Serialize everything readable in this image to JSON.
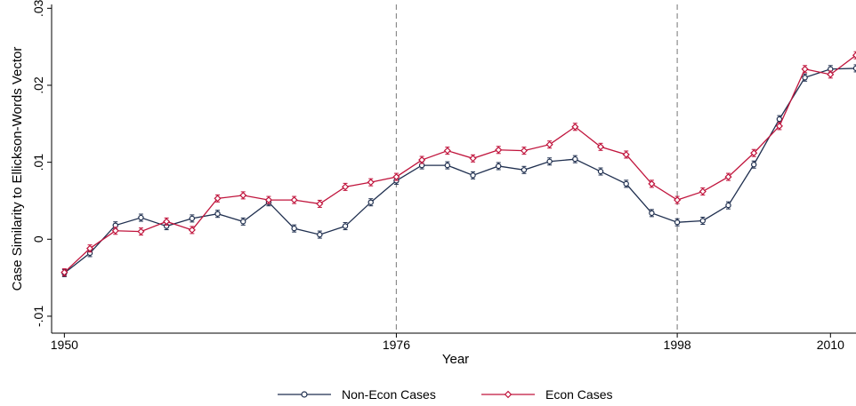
{
  "chart_data": {
    "type": "line",
    "title": "",
    "xlabel": "Year",
    "ylabel": "Case Similarity to Ellickson-Words Vector",
    "xlim": [
      1949,
      2012
    ],
    "ylim": [
      -0.0122,
      0.0305
    ],
    "xticks": [
      {
        "value": 1950,
        "label": "1950"
      },
      {
        "value": 1976,
        "label": "1976"
      },
      {
        "value": 1998,
        "label": "1998"
      },
      {
        "value": 2010,
        "label": "2010"
      }
    ],
    "yticks": [
      {
        "value": -0.01,
        "label": "-.01"
      },
      {
        "value": 0,
        "label": "0"
      },
      {
        "value": 0.01,
        "label": ".01"
      },
      {
        "value": 0.02,
        "label": ".02"
      },
      {
        "value": 0.03,
        "label": ".03"
      }
    ],
    "reference_lines_x": [
      1976,
      1998
    ],
    "grid": false,
    "legend_position": "bottom",
    "x": [
      1950,
      1952,
      1954,
      1956,
      1958,
      1960,
      1962,
      1964,
      1966,
      1968,
      1970,
      1972,
      1974,
      1976,
      1978,
      1980,
      1982,
      1984,
      1986,
      1988,
      1990,
      1992,
      1994,
      1996,
      1998,
      2000,
      2002,
      2004,
      2006,
      2008,
      2010,
      2012
    ],
    "series": [
      {
        "name": "Non-Econ Cases",
        "color": "#1f2f4f",
        "marker": "circle",
        "values": [
          -0.0044,
          -0.0018,
          0.0018,
          0.0028,
          0.0017,
          0.0027,
          0.0033,
          0.0023,
          0.0048,
          0.0014,
          0.0006,
          0.0017,
          0.0048,
          0.0076,
          0.0096,
          0.0096,
          0.0083,
          0.0095,
          0.009,
          0.0101,
          0.0104,
          0.0088,
          0.0072,
          0.0034,
          0.0022,
          0.0024,
          0.0044,
          0.0097,
          0.0156,
          0.021,
          0.0221,
          0.0222
        ]
      },
      {
        "name": "Econ Cases",
        "color": "#c0143c",
        "marker": "diamond",
        "values": [
          -0.0043,
          -0.0012,
          0.0011,
          0.001,
          0.0023,
          0.0012,
          0.0053,
          0.0057,
          0.0051,
          0.0051,
          0.0046,
          0.0068,
          0.0074,
          0.0081,
          0.0103,
          0.0115,
          0.0105,
          0.0116,
          0.0115,
          0.0123,
          0.0146,
          0.012,
          0.011,
          0.0072,
          0.0051,
          0.0062,
          0.0081,
          0.0112,
          0.0147,
          0.0221,
          0.0214,
          0.0239
        ]
      }
    ]
  }
}
